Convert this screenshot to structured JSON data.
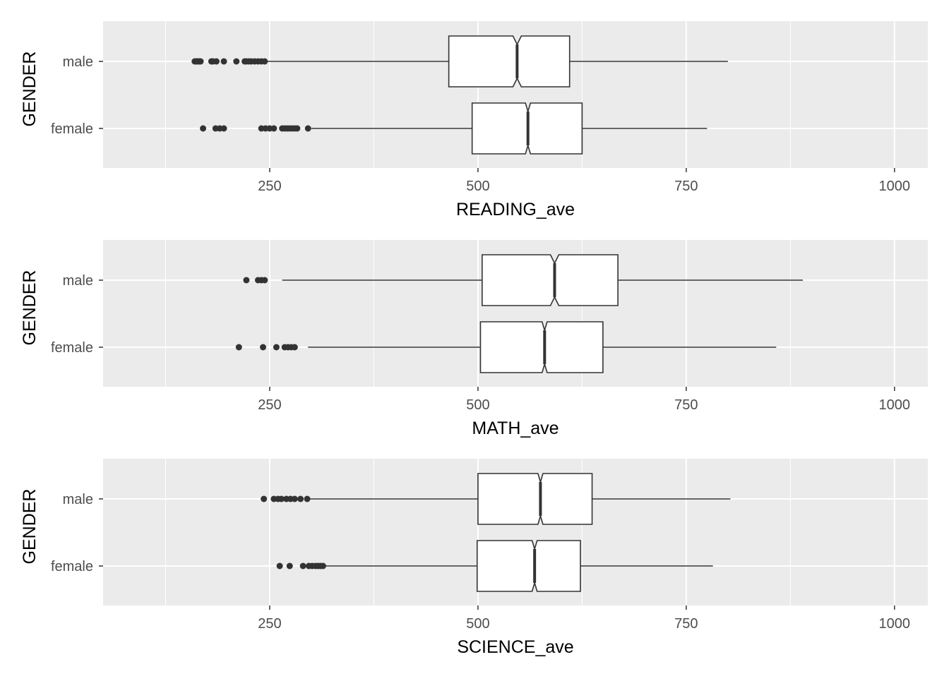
{
  "colors": {
    "panel_bg": "#ebebeb",
    "grid": "#ffffff",
    "box_fill": "#ffffff",
    "box_stroke": "#333333",
    "outlier": "#333333",
    "tick_text": "#4d4d4d",
    "axis_title": "#000000"
  },
  "chart_data": [
    {
      "type": "boxplot",
      "notched": true,
      "orientation": "horizontal",
      "xlabel": "READING_ave",
      "ylabel": "GENDER",
      "xlim": [
        50,
        1040
      ],
      "xticks": [
        250,
        500,
        750,
        1000
      ],
      "grid": true,
      "categories": [
        "male",
        "female"
      ],
      "boxes": [
        {
          "category": "male",
          "whisker_low": 247,
          "q1": 465,
          "median": 547,
          "q3": 610,
          "whisker_high": 800,
          "notch_low": 542,
          "notch_high": 552,
          "outliers": [
            160,
            162,
            163,
            165,
            166,
            167,
            180,
            182,
            186,
            195,
            210,
            220,
            222,
            225,
            228,
            232,
            236,
            240,
            244
          ]
        },
        {
          "category": "female",
          "whisker_low": 300,
          "q1": 493,
          "median": 560,
          "q3": 625,
          "whisker_high": 775,
          "notch_low": 557,
          "notch_high": 563,
          "outliers": [
            170,
            185,
            190,
            195,
            240,
            245,
            250,
            255,
            265,
            268,
            271,
            274,
            277,
            280,
            283,
            296
          ]
        }
      ]
    },
    {
      "type": "boxplot",
      "notched": true,
      "orientation": "horizontal",
      "xlabel": "MATH_ave",
      "ylabel": "GENDER",
      "xlim": [
        50,
        1040
      ],
      "xticks": [
        250,
        500,
        750,
        1000
      ],
      "grid": true,
      "categories": [
        "male",
        "female"
      ],
      "boxes": [
        {
          "category": "male",
          "whisker_low": 265,
          "q1": 505,
          "median": 592,
          "q3": 668,
          "whisker_high": 890,
          "notch_low": 587,
          "notch_high": 597,
          "outliers": [
            222,
            236,
            240,
            244
          ]
        },
        {
          "category": "female",
          "whisker_low": 296,
          "q1": 503,
          "median": 580,
          "q3": 650,
          "whisker_high": 858,
          "notch_low": 577,
          "notch_high": 583,
          "outliers": [
            213,
            242,
            258,
            268,
            272,
            276,
            280
          ]
        }
      ]
    },
    {
      "type": "boxplot",
      "notched": true,
      "orientation": "horizontal",
      "xlabel": "SCIENCE_ave",
      "ylabel": "GENDER",
      "xlim": [
        50,
        1040
      ],
      "xticks": [
        250,
        500,
        750,
        1000
      ],
      "grid": true,
      "categories": [
        "male",
        "female"
      ],
      "boxes": [
        {
          "category": "male",
          "whisker_low": 298,
          "q1": 500,
          "median": 575,
          "q3": 637,
          "whisker_high": 803,
          "notch_low": 572,
          "notch_high": 578,
          "outliers": [
            243,
            255,
            260,
            264,
            270,
            275,
            280,
            287,
            295
          ]
        },
        {
          "category": "female",
          "whisker_low": 316,
          "q1": 499,
          "median": 568,
          "q3": 623,
          "whisker_high": 782,
          "notch_low": 565,
          "notch_high": 571,
          "outliers": [
            262,
            274,
            290,
            297,
            301,
            305,
            308,
            311,
            314
          ]
        }
      ]
    }
  ]
}
